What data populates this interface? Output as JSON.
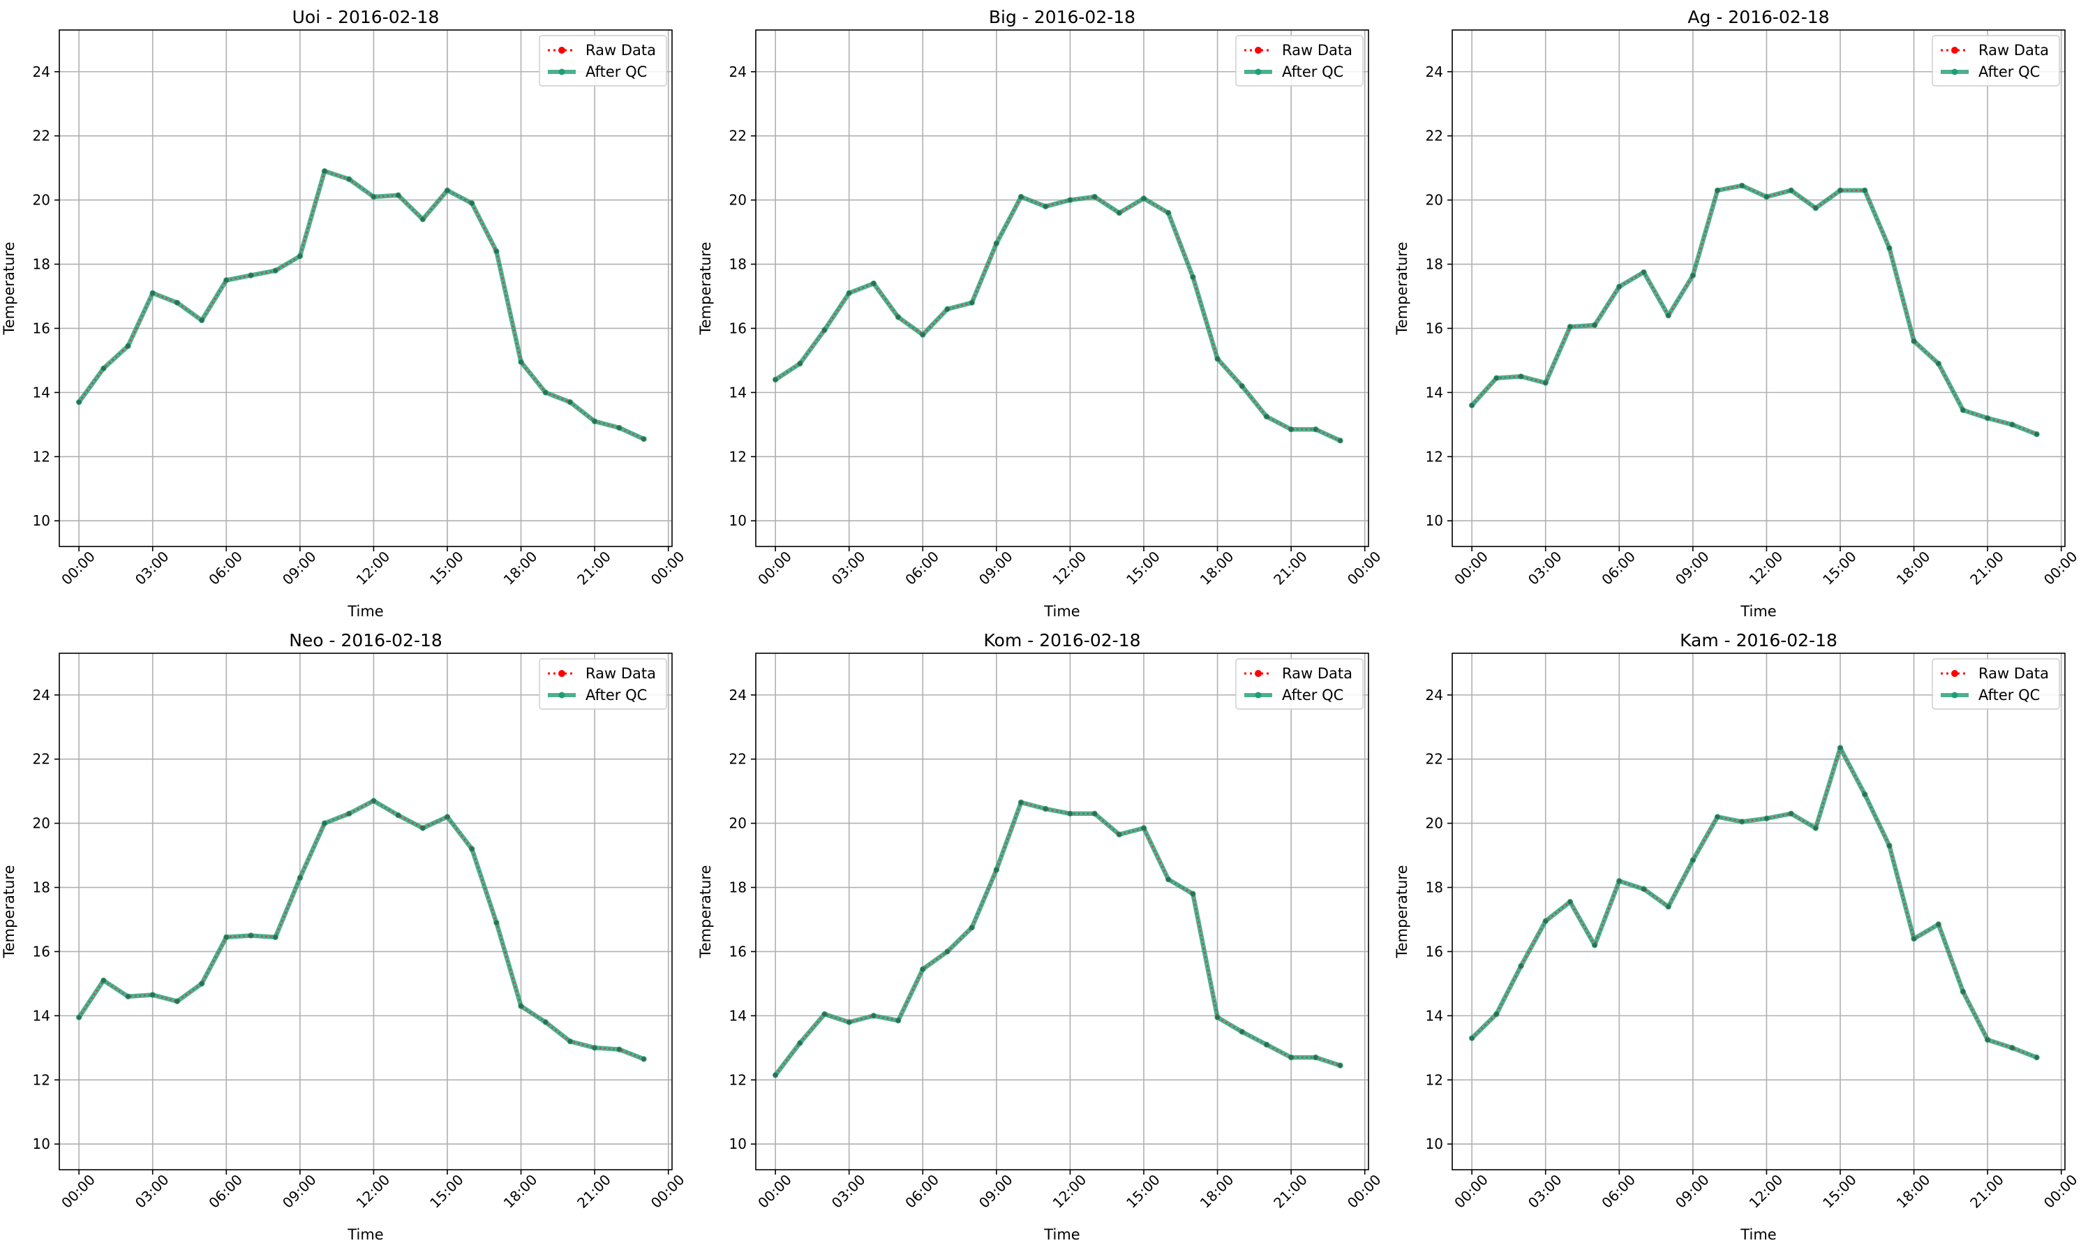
{
  "chart_data": [
    {
      "type": "line",
      "title": "Uoi - 2016-02-18",
      "xlabel": "Time",
      "ylabel": "Temperature",
      "xlim": [
        -0.8,
        24.15
      ],
      "ylim": [
        9.2,
        25.3
      ],
      "xticks": [
        0,
        3,
        6,
        9,
        12,
        15,
        18,
        21,
        24
      ],
      "xtick_labels": [
        "00:00",
        "03:00",
        "06:00",
        "09:00",
        "12:00",
        "15:00",
        "18:00",
        "21:00",
        "00:00"
      ],
      "yticks": [
        10,
        12,
        14,
        16,
        18,
        20,
        22,
        24
      ],
      "ytick_labels": [
        "10",
        "12",
        "14",
        "16",
        "18",
        "20",
        "22",
        "24"
      ],
      "grid": true,
      "legend": "top-right",
      "x": [
        "00:00",
        "01:00",
        "02:00",
        "03:00",
        "04:00",
        "05:00",
        "06:00",
        "07:00",
        "08:00",
        "09:00",
        "10:00",
        "11:00",
        "12:00",
        "13:00",
        "14:00",
        "15:00",
        "16:00",
        "17:00",
        "18:00",
        "19:00",
        "20:00",
        "21:00",
        "22:00",
        "23:00"
      ],
      "series": [
        {
          "name": "Raw Data",
          "color": "#ff0000",
          "style": "dotted",
          "values": [
            13.7,
            14.75,
            15.45,
            17.1,
            16.8,
            16.25,
            17.5,
            17.65,
            17.8,
            18.25,
            20.9,
            20.65,
            20.1,
            20.15,
            19.4,
            20.3,
            19.9,
            18.4,
            14.95,
            14.0,
            13.7,
            13.1,
            12.9,
            12.55
          ]
        },
        {
          "name": "After QC",
          "color": "#1f9e76",
          "style": "solid",
          "values": [
            13.7,
            14.75,
            15.45,
            17.1,
            16.8,
            16.25,
            17.5,
            17.65,
            17.8,
            18.25,
            20.9,
            20.65,
            20.1,
            20.15,
            19.4,
            20.3,
            19.9,
            18.4,
            14.95,
            14.0,
            13.7,
            13.1,
            12.9,
            12.55
          ]
        }
      ]
    },
    {
      "type": "line",
      "title": "Big - 2016-02-18",
      "xlabel": "Time",
      "ylabel": "Temperature",
      "xlim": [
        -0.8,
        24.15
      ],
      "ylim": [
        9.2,
        25.3
      ],
      "xticks": [
        0,
        3,
        6,
        9,
        12,
        15,
        18,
        21,
        24
      ],
      "xtick_labels": [
        "00:00",
        "03:00",
        "06:00",
        "09:00",
        "12:00",
        "15:00",
        "18:00",
        "21:00",
        "00:00"
      ],
      "yticks": [
        10,
        12,
        14,
        16,
        18,
        20,
        22,
        24
      ],
      "ytick_labels": [
        "10",
        "12",
        "14",
        "16",
        "18",
        "20",
        "22",
        "24"
      ],
      "grid": true,
      "legend": "top-right",
      "x": [
        "00:00",
        "01:00",
        "02:00",
        "03:00",
        "04:00",
        "05:00",
        "06:00",
        "07:00",
        "08:00",
        "09:00",
        "10:00",
        "11:00",
        "12:00",
        "13:00",
        "14:00",
        "15:00",
        "16:00",
        "17:00",
        "18:00",
        "19:00",
        "20:00",
        "21:00",
        "22:00",
        "23:00"
      ],
      "series": [
        {
          "name": "Raw Data",
          "color": "#ff0000",
          "style": "dotted",
          "values": [
            14.4,
            14.9,
            15.95,
            17.1,
            17.4,
            16.35,
            15.8,
            16.6,
            16.8,
            18.65,
            20.1,
            19.8,
            20.0,
            20.1,
            19.6,
            20.05,
            19.6,
            17.6,
            15.05,
            14.2,
            13.25,
            12.85,
            12.85,
            12.5
          ]
        },
        {
          "name": "After QC",
          "color": "#1f9e76",
          "style": "solid",
          "values": [
            14.4,
            14.9,
            15.95,
            17.1,
            17.4,
            16.35,
            15.8,
            16.6,
            16.8,
            18.65,
            20.1,
            19.8,
            20.0,
            20.1,
            19.6,
            20.05,
            19.6,
            17.6,
            15.05,
            14.2,
            13.25,
            12.85,
            12.85,
            12.5
          ]
        }
      ]
    },
    {
      "type": "line",
      "title": "Ag - 2016-02-18",
      "xlabel": "Time",
      "ylabel": "Temperature",
      "xlim": [
        -0.8,
        24.15
      ],
      "ylim": [
        9.2,
        25.3
      ],
      "xticks": [
        0,
        3,
        6,
        9,
        12,
        15,
        18,
        21,
        24
      ],
      "xtick_labels": [
        "00:00",
        "03:00",
        "06:00",
        "09:00",
        "12:00",
        "15:00",
        "18:00",
        "21:00",
        "00:00"
      ],
      "yticks": [
        10,
        12,
        14,
        16,
        18,
        20,
        22,
        24
      ],
      "ytick_labels": [
        "10",
        "12",
        "14",
        "16",
        "18",
        "20",
        "22",
        "24"
      ],
      "grid": true,
      "legend": "top-right",
      "x": [
        "00:00",
        "01:00",
        "02:00",
        "03:00",
        "04:00",
        "05:00",
        "06:00",
        "07:00",
        "08:00",
        "09:00",
        "10:00",
        "11:00",
        "12:00",
        "13:00",
        "14:00",
        "15:00",
        "16:00",
        "17:00",
        "18:00",
        "19:00",
        "20:00",
        "21:00",
        "22:00",
        "23:00"
      ],
      "series": [
        {
          "name": "Raw Data",
          "color": "#ff0000",
          "style": "dotted",
          "values": [
            13.6,
            14.45,
            14.5,
            14.3,
            16.05,
            16.1,
            17.3,
            17.75,
            16.4,
            17.65,
            20.3,
            20.45,
            20.1,
            20.3,
            19.75,
            20.3,
            20.3,
            18.5,
            15.6,
            14.9,
            13.45,
            13.2,
            13.0,
            12.7
          ]
        },
        {
          "name": "After QC",
          "color": "#1f9e76",
          "style": "solid",
          "values": [
            13.6,
            14.45,
            14.5,
            14.3,
            16.05,
            16.1,
            17.3,
            17.75,
            16.4,
            17.65,
            20.3,
            20.45,
            20.1,
            20.3,
            19.75,
            20.3,
            20.3,
            18.5,
            15.6,
            14.9,
            13.45,
            13.2,
            13.0,
            12.7
          ]
        }
      ]
    },
    {
      "type": "line",
      "title": "Neo - 2016-02-18",
      "xlabel": "Time",
      "ylabel": "Temperature",
      "xlim": [
        -0.8,
        24.15
      ],
      "ylim": [
        9.2,
        25.3
      ],
      "xticks": [
        0,
        3,
        6,
        9,
        12,
        15,
        18,
        21,
        24
      ],
      "xtick_labels": [
        "00:00",
        "03:00",
        "06:00",
        "09:00",
        "12:00",
        "15:00",
        "18:00",
        "21:00",
        "00:00"
      ],
      "yticks": [
        10,
        12,
        14,
        16,
        18,
        20,
        22,
        24
      ],
      "ytick_labels": [
        "10",
        "12",
        "14",
        "16",
        "18",
        "20",
        "22",
        "24"
      ],
      "grid": true,
      "legend": "top-right",
      "x": [
        "00:00",
        "01:00",
        "02:00",
        "03:00",
        "04:00",
        "05:00",
        "06:00",
        "07:00",
        "08:00",
        "09:00",
        "10:00",
        "11:00",
        "12:00",
        "13:00",
        "14:00",
        "15:00",
        "16:00",
        "17:00",
        "18:00",
        "19:00",
        "20:00",
        "21:00",
        "22:00",
        "23:00"
      ],
      "series": [
        {
          "name": "Raw Data",
          "color": "#ff0000",
          "style": "dotted",
          "values": [
            13.95,
            15.1,
            14.6,
            14.65,
            14.45,
            15.0,
            16.45,
            16.5,
            16.45,
            18.3,
            20.0,
            20.3,
            20.7,
            20.25,
            19.85,
            20.2,
            19.2,
            16.9,
            14.3,
            13.8,
            13.2,
            13.0,
            12.95,
            12.65
          ]
        },
        {
          "name": "After QC",
          "color": "#1f9e76",
          "style": "solid",
          "values": [
            13.95,
            15.1,
            14.6,
            14.65,
            14.45,
            15.0,
            16.45,
            16.5,
            16.45,
            18.3,
            20.0,
            20.3,
            20.7,
            20.25,
            19.85,
            20.2,
            19.2,
            16.9,
            14.3,
            13.8,
            13.2,
            13.0,
            12.95,
            12.65
          ]
        }
      ]
    },
    {
      "type": "line",
      "title": "Kom - 2016-02-18",
      "xlabel": "Time",
      "ylabel": "Temperature",
      "xlim": [
        -0.8,
        24.15
      ],
      "ylim": [
        9.2,
        25.3
      ],
      "xticks": [
        0,
        3,
        6,
        9,
        12,
        15,
        18,
        21,
        24
      ],
      "xtick_labels": [
        "00:00",
        "03:00",
        "06:00",
        "09:00",
        "12:00",
        "15:00",
        "18:00",
        "21:00",
        "00:00"
      ],
      "yticks": [
        10,
        12,
        14,
        16,
        18,
        20,
        22,
        24
      ],
      "ytick_labels": [
        "10",
        "12",
        "14",
        "16",
        "18",
        "20",
        "22",
        "24"
      ],
      "grid": true,
      "legend": "top-right",
      "x": [
        "00:00",
        "01:00",
        "02:00",
        "03:00",
        "04:00",
        "05:00",
        "06:00",
        "07:00",
        "08:00",
        "09:00",
        "10:00",
        "11:00",
        "12:00",
        "13:00",
        "14:00",
        "15:00",
        "16:00",
        "17:00",
        "18:00",
        "19:00",
        "20:00",
        "21:00",
        "22:00",
        "23:00"
      ],
      "series": [
        {
          "name": "Raw Data",
          "color": "#ff0000",
          "style": "dotted",
          "values": [
            12.15,
            13.15,
            14.05,
            13.8,
            14.0,
            13.85,
            15.45,
            16.0,
            16.75,
            18.55,
            20.65,
            20.45,
            20.3,
            20.3,
            19.65,
            19.85,
            18.25,
            17.8,
            13.95,
            13.5,
            13.1,
            12.7,
            12.7,
            12.45
          ]
        },
        {
          "name": "After QC",
          "color": "#1f9e76",
          "style": "solid",
          "values": [
            12.15,
            13.15,
            14.05,
            13.8,
            14.0,
            13.85,
            15.45,
            16.0,
            16.75,
            18.55,
            20.65,
            20.45,
            20.3,
            20.3,
            19.65,
            19.85,
            18.25,
            17.8,
            13.95,
            13.5,
            13.1,
            12.7,
            12.7,
            12.45
          ]
        }
      ]
    },
    {
      "type": "line",
      "title": "Kam - 2016-02-18",
      "xlabel": "Time",
      "ylabel": "Temperature",
      "xlim": [
        -0.8,
        24.15
      ],
      "ylim": [
        9.2,
        25.3
      ],
      "xticks": [
        0,
        3,
        6,
        9,
        12,
        15,
        18,
        21,
        24
      ],
      "xtick_labels": [
        "00:00",
        "03:00",
        "06:00",
        "09:00",
        "12:00",
        "15:00",
        "18:00",
        "21:00",
        "00:00"
      ],
      "yticks": [
        10,
        12,
        14,
        16,
        18,
        20,
        22,
        24
      ],
      "ytick_labels": [
        "10",
        "12",
        "14",
        "16",
        "18",
        "20",
        "22",
        "24"
      ],
      "grid": true,
      "legend": "top-right",
      "x": [
        "00:00",
        "01:00",
        "02:00",
        "03:00",
        "04:00",
        "05:00",
        "06:00",
        "07:00",
        "08:00",
        "09:00",
        "10:00",
        "11:00",
        "12:00",
        "13:00",
        "14:00",
        "15:00",
        "16:00",
        "17:00",
        "18:00",
        "19:00",
        "20:00",
        "21:00",
        "22:00",
        "23:00"
      ],
      "series": [
        {
          "name": "Raw Data",
          "color": "#ff0000",
          "style": "dotted",
          "values": [
            13.3,
            14.05,
            15.55,
            16.95,
            17.55,
            16.2,
            18.2,
            17.95,
            17.4,
            18.85,
            20.2,
            20.05,
            20.15,
            20.3,
            19.85,
            22.35,
            20.9,
            19.3,
            16.4,
            16.85,
            14.75,
            13.25,
            13.0,
            12.7
          ]
        },
        {
          "name": "After QC",
          "color": "#1f9e76",
          "style": "solid",
          "values": [
            13.3,
            14.05,
            15.55,
            16.95,
            17.55,
            16.2,
            18.2,
            17.95,
            17.4,
            18.85,
            20.2,
            20.05,
            20.15,
            20.3,
            19.85,
            22.35,
            20.9,
            19.3,
            16.4,
            16.85,
            14.75,
            13.25,
            13.0,
            12.7
          ]
        }
      ]
    }
  ]
}
